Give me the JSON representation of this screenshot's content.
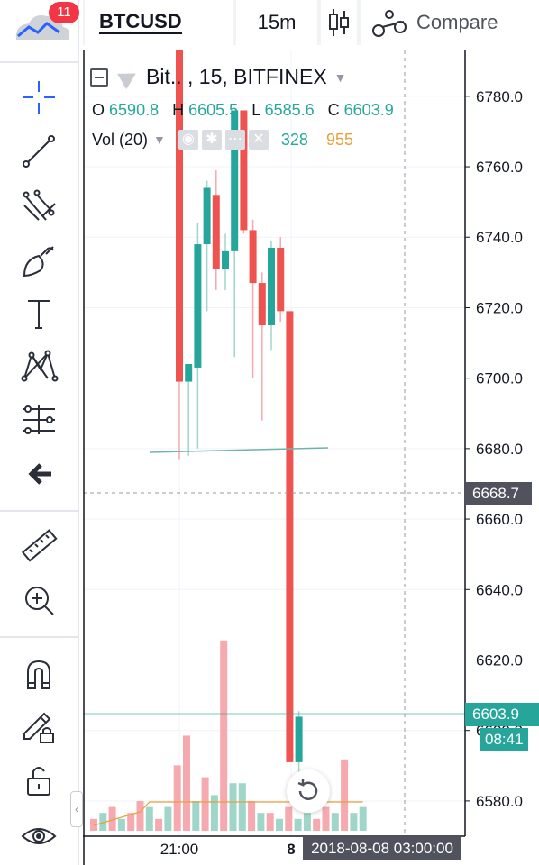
{
  "header": {
    "symbol": "BTCUSD",
    "interval": "15m",
    "compare_label": "Compare",
    "notification_count": "11"
  },
  "legend": {
    "title": "Bit.. , 15, BITFINEX",
    "ohlc": [
      {
        "label": "O",
        "value": "6590.8"
      },
      {
        "label": "H",
        "value": "6605.5"
      },
      {
        "label": "L",
        "value": "6585.6"
      },
      {
        "label": "C",
        "value": "6603.9"
      }
    ],
    "volume_label": "Vol (20)",
    "volume_value": "328",
    "volume_ma_value": "955"
  },
  "left_toolbar": {
    "tools": [
      "crosshair-icon",
      "trend-line-icon",
      "fib-icon",
      "brush-icon",
      "text-icon",
      "pattern-icon",
      "prediction-icon",
      "back-arrow-icon",
      "ruler-icon",
      "zoom-in-icon",
      "magnet-icon",
      "lock-pencil-icon",
      "unlock-icon",
      "eye-icon"
    ]
  },
  "price_axis": {
    "labels": [
      "6780.0",
      "6760.0",
      "6740.0",
      "6720.0",
      "6700.0",
      "6680.0",
      "6660.0",
      "6640.0",
      "6620.0",
      "6600.0",
      "6580.0"
    ],
    "crosshair_price": "6668.7",
    "last_price": "6603.9",
    "countdown": "08:41"
  },
  "time_axis": {
    "labels": [
      "21:00",
      "8"
    ],
    "crosshair_time": "2018-08-08 03:00:00"
  },
  "colors": {
    "up": "#26a69a",
    "down": "#ef5350",
    "volume_up": "#9fd6c9",
    "volume_down": "#f6a9ae",
    "volume_ma": "#e8a03a"
  },
  "chart_data": {
    "type": "candlestick",
    "ylim": [
      6570,
      6793
    ],
    "candles": [
      {
        "o": 6800,
        "h": 6800,
        "l": 6677,
        "c": 6699
      },
      {
        "o": 6699,
        "h": 6704,
        "l": 6678,
        "c": 6704
      },
      {
        "o": 6703,
        "h": 6744,
        "l": 6680,
        "c": 6738
      },
      {
        "o": 6738,
        "h": 6756,
        "l": 6719,
        "c": 6754
      },
      {
        "o": 6752,
        "h": 6759,
        "l": 6725,
        "c": 6731
      },
      {
        "o": 6731,
        "h": 6741,
        "l": 6725,
        "c": 6736
      },
      {
        "o": 6736,
        "h": 6776,
        "l": 6706,
        "c": 6776
      },
      {
        "o": 6776,
        "h": 6776,
        "l": 6741,
        "c": 6742
      },
      {
        "o": 6742,
        "h": 6745,
        "l": 6700,
        "c": 6727
      },
      {
        "o": 6727,
        "h": 6730,
        "l": 6688,
        "c": 6715
      },
      {
        "o": 6715,
        "h": 6739,
        "l": 6708,
        "c": 6737
      },
      {
        "o": 6737,
        "h": 6740,
        "l": 6716,
        "c": 6719
      },
      {
        "o": 6719,
        "h": 6719,
        "l": 6591,
        "c": 6591
      },
      {
        "o": 6591,
        "h": 6605.5,
        "l": 6585.6,
        "c": 6603.9
      }
    ],
    "volume": [
      2,
      3,
      4,
      2,
      3,
      5,
      4,
      2,
      4,
      11,
      16,
      5,
      9,
      6,
      32,
      8,
      8,
      5,
      3,
      3,
      2,
      4,
      2,
      3,
      2,
      4,
      3,
      12,
      3,
      4
    ],
    "volume_up": [
      0,
      1,
      0,
      1,
      0,
      0,
      1,
      0,
      1,
      0,
      0,
      1,
      0,
      1,
      0,
      1,
      1,
      0,
      1,
      0,
      1,
      0,
      1,
      1,
      0,
      0,
      1,
      0,
      1,
      1
    ]
  }
}
